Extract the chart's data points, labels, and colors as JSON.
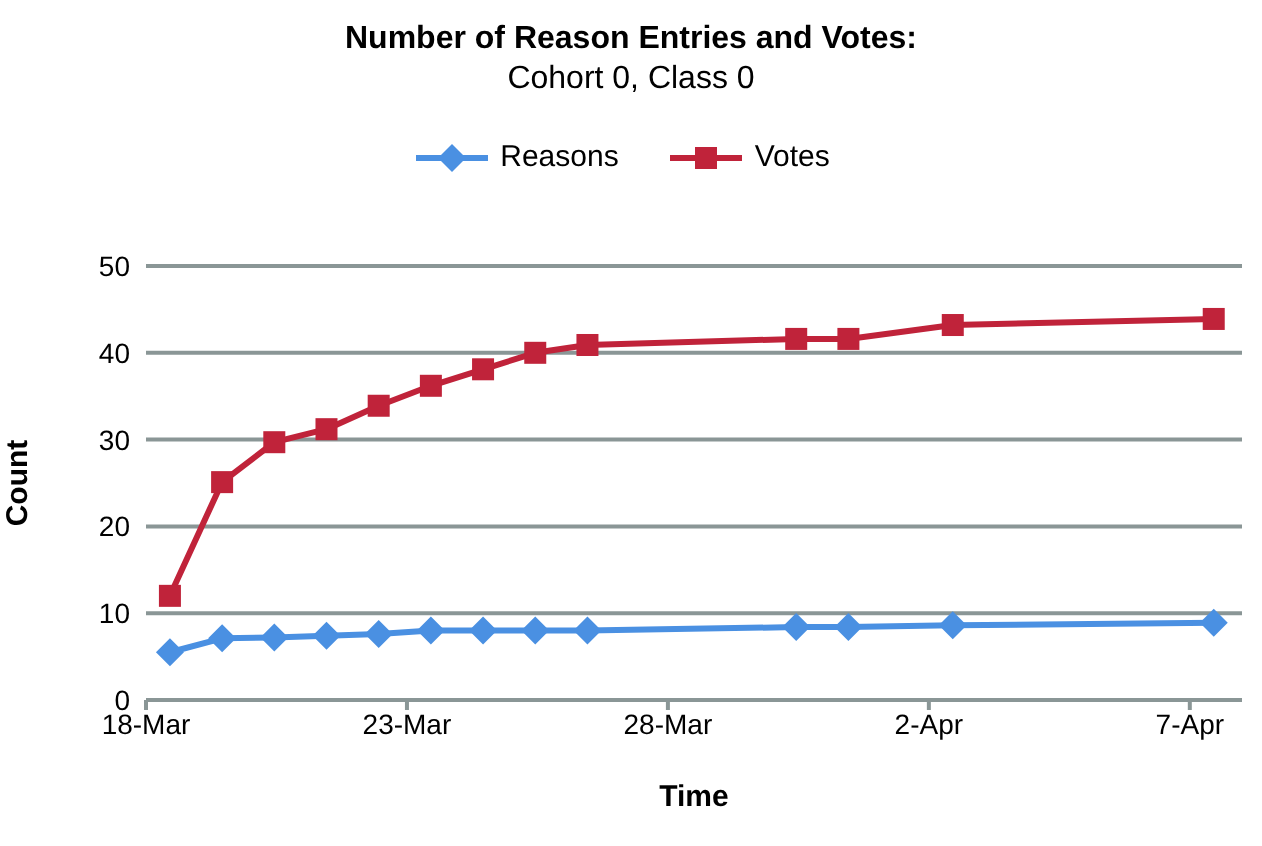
{
  "chart_data": {
    "type": "line",
    "title": "Number of Reason Entries and Votes:",
    "subtitle": "Cohort 0, Class 0",
    "xlabel": "Time",
    "ylabel": "Count",
    "x": [
      "--03-18T11:00",
      "--03-19T11:00",
      "--03-20T11:00",
      "--03-21T11:00",
      "--03-22T11:00",
      "--03-23T11:00",
      "--03-24T11:00",
      "--03-25T11:00",
      "--03-26T11:00",
      "--03-30T11:00",
      "--03-31T11:00",
      "--04-02T11:00",
      "--04-07T11:00"
    ],
    "series": [
      {
        "name": "Reasons",
        "color": "#4a90e2",
        "marker": "diamond",
        "values": [
          5.5,
          7.1,
          7.2,
          7.4,
          7.6,
          8.0,
          8.0,
          8.0,
          8.0,
          8.4,
          8.4,
          8.6,
          8.9
        ]
      },
      {
        "name": "Votes",
        "color": "#c0233a",
        "marker": "square",
        "values": [
          12,
          25.1,
          29.7,
          31.2,
          33.9,
          36.2,
          38.1,
          40.0,
          40.9,
          41.6,
          41.6,
          43.2,
          43.9
        ]
      }
    ],
    "xlim": [
      "--03-18",
      "--04-08"
    ],
    "xticks": [
      {
        "value": "--03-18",
        "label": "18-Mar"
      },
      {
        "value": "--03-23",
        "label": "23-Mar"
      },
      {
        "value": "--03-28",
        "label": "28-Mar"
      },
      {
        "value": "--04-02",
        "label": "2-Apr"
      },
      {
        "value": "--04-07",
        "label": "7-Apr"
      }
    ],
    "ylim": [
      0,
      50
    ],
    "yticks": [
      0,
      10,
      20,
      30,
      40,
      50
    ],
    "grid": "y",
    "legend": "top",
    "line_style": "solid"
  }
}
